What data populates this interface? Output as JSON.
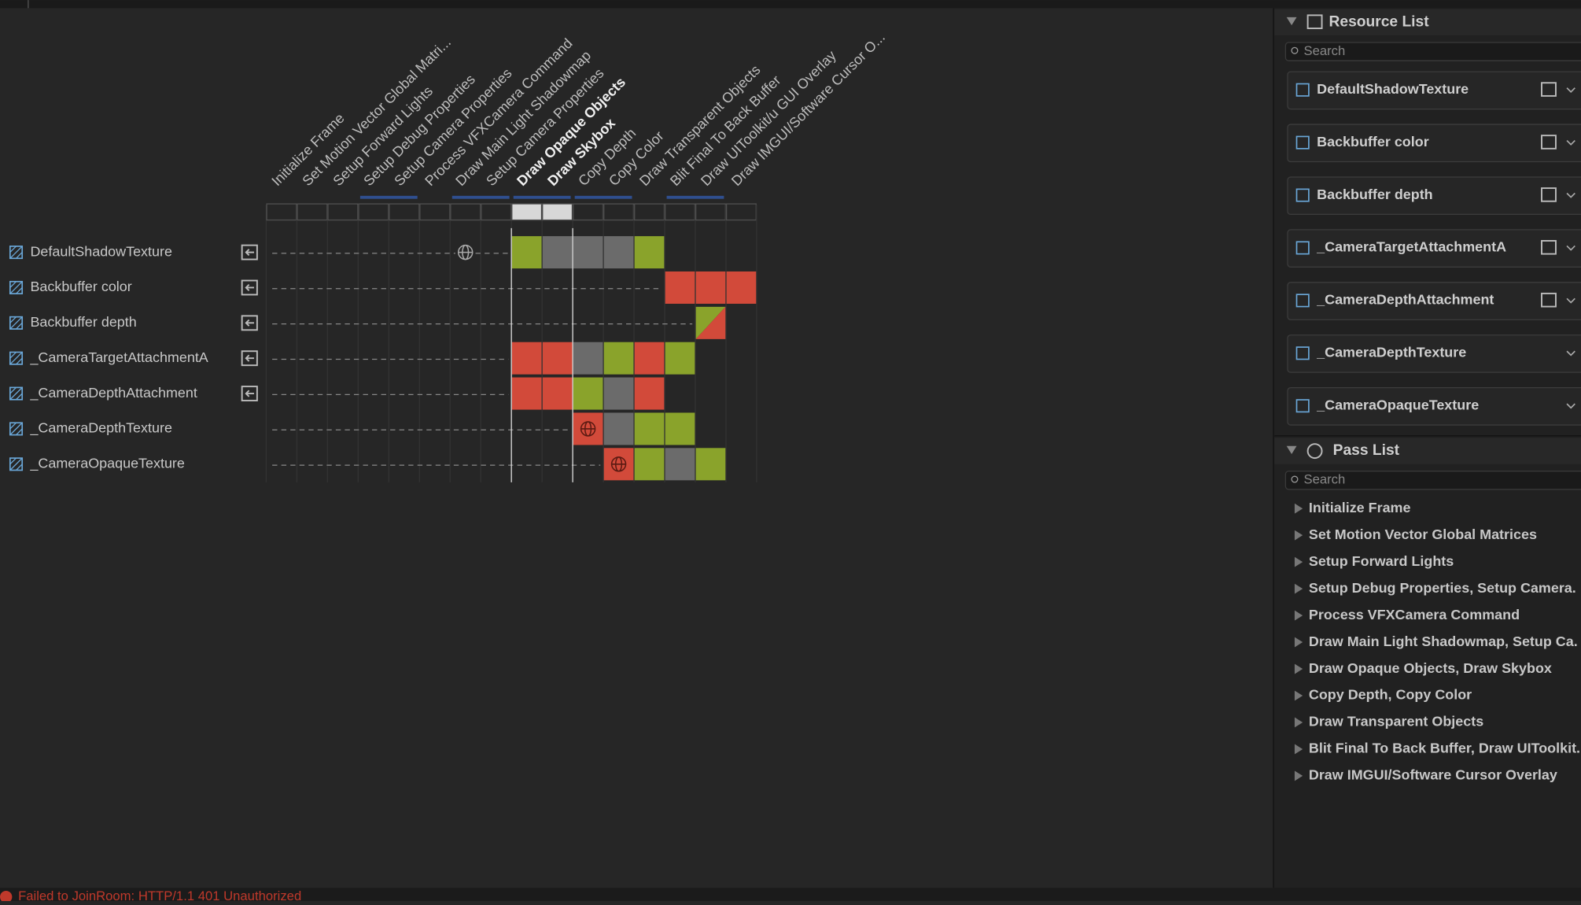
{
  "passes": [
    "Initialize Frame",
    "Set Motion Vector Global Matri...",
    "Setup Forward Lights",
    "Setup Debug Properties",
    "Setup Camera Properties",
    "Process VFXCamera Command",
    "Draw Main Light Shadowmap",
    "Setup Camera Properties",
    "Draw Opaque Objects",
    "Draw Skybox",
    "Copy Depth",
    "Copy Color",
    "Draw Transparent Objects",
    "Blit Final To Back Buffer",
    "Draw UIToolkit/u GUI Overlay",
    "Draw IMGUI/Software Cursor O..."
  ],
  "resources": [
    {
      "name": "DefaultShadowTexture",
      "cells": [
        null,
        null,
        null,
        null,
        null,
        null,
        null,
        null,
        "#8aa32b",
        "#6b6b6b",
        "#6b6b6b",
        "#6b6b6b",
        "#8aa32b",
        null,
        null,
        null
      ]
    },
    {
      "name": "Backbuffer color",
      "cells": [
        null,
        null,
        null,
        null,
        null,
        null,
        null,
        null,
        null,
        null,
        null,
        null,
        null,
        "#d24a3a",
        "#d24a3a",
        "#d24a3a"
      ]
    },
    {
      "name": "Backbuffer depth",
      "cells": [
        null,
        null,
        null,
        null,
        null,
        null,
        null,
        null,
        null,
        null,
        null,
        null,
        null,
        null,
        "split",
        null
      ]
    },
    {
      "name": "_CameraTargetAttachmentA",
      "cells": [
        null,
        null,
        null,
        null,
        null,
        null,
        null,
        null,
        "#d24a3a",
        "#d24a3a",
        "#6b6b6b",
        "#8aa32b",
        "#d24a3a",
        "#8aa32b",
        null,
        null
      ]
    },
    {
      "name": "_CameraDepthAttachment",
      "cells": [
        null,
        null,
        null,
        null,
        null,
        null,
        null,
        null,
        "#d24a3a",
        "#d24a3a",
        "#8aa32b",
        "#6b6b6b",
        "#d24a3a",
        null,
        null,
        null
      ]
    },
    {
      "name": "_CameraDepthTexture",
      "cells": [
        null,
        null,
        null,
        null,
        null,
        null,
        null,
        null,
        null,
        null,
        "#d24a3a",
        "#6b6b6b",
        "#8aa32b",
        "#8aa32b",
        null,
        null
      ]
    },
    {
      "name": "_CameraOpaqueTexture",
      "cells": [
        null,
        null,
        null,
        null,
        null,
        null,
        null,
        null,
        null,
        null,
        null,
        "#d24a3a",
        "#8aa32b",
        "#6b6b6b",
        "#8aa32b",
        null
      ]
    }
  ],
  "resource_panel": {
    "title": "Resource List",
    "search": "Search"
  },
  "pass_panel": {
    "title": "Pass List",
    "search": "Search",
    "items": [
      "Initialize Frame",
      "Set Motion Vector Global Matrices",
      "Setup Forward Lights",
      "Setup Debug Properties, Setup Camera.",
      "Process VFXCamera Command",
      "Draw Main Light Shadowmap, Setup Ca.",
      "Draw Opaque Objects, Draw Skybox",
      "Copy Depth, Copy Color",
      "Draw Transparent Objects",
      "Blit Final To Back Buffer, Draw UIToolkit.",
      "Draw IMGUI/Software Cursor Overlay"
    ]
  },
  "status": "Failed to JoinRoom: HTTP/1.1 401 Unauthorized"
}
